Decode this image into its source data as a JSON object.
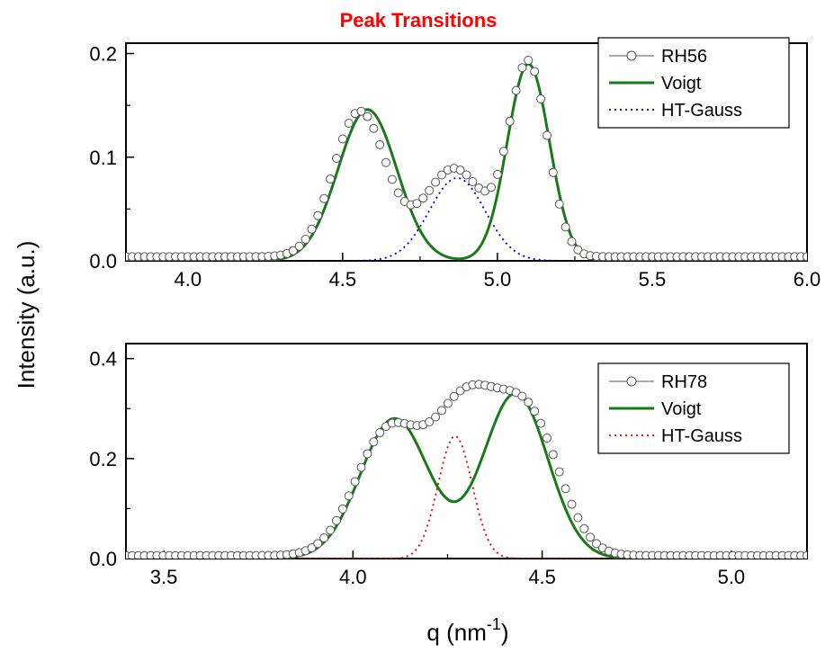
{
  "title": "Peak Transitions",
  "title_color": "#ff0000",
  "ylabel": "Intensity (a.u.)",
  "xlabel_base": "q (nm",
  "xlabel_sup": "-1",
  "xlabel_close": ")",
  "colors": {
    "data": "#555555",
    "voigt": "#1a7a1a",
    "gauss_top": "#0000cc",
    "gauss_bottom": "#e60000"
  },
  "chart_data": [
    {
      "type": "line",
      "panel": "top",
      "xlim": [
        3.8,
        6.0
      ],
      "ylim": [
        0,
        0.21
      ],
      "xticks": [
        4.0,
        4.5,
        5.0,
        5.5,
        6.0
      ],
      "xtick_labels": [
        "4.0",
        "4.5",
        "5.0",
        "5.5",
        "6.0"
      ],
      "yticks": [
        0.0,
        0.1,
        0.2
      ],
      "ytick_labels": [
        "0.0",
        "0.1",
        "0.2"
      ],
      "legend_position": "top-right",
      "series": [
        {
          "name": "RH56",
          "style": "open-circles",
          "model": {
            "baseline": 0.004,
            "peaks": [
              {
                "c": 4.555,
                "a": 0.14,
                "s": 0.085
              },
              {
                "c": 4.86,
                "a": 0.085,
                "s": 0.095
              },
              {
                "c": 5.1,
                "a": 0.186,
                "s": 0.062
              }
            ]
          }
        },
        {
          "name": "Voigt",
          "style": "solid",
          "model": {
            "baseline": 0.0,
            "peaks": [
              {
                "c": 4.58,
                "a": 0.146,
                "s": 0.095
              },
              {
                "c": 5.1,
                "a": 0.19,
                "s": 0.068
              }
            ]
          }
        },
        {
          "name": "HT-Gauss",
          "style": "dotted",
          "model": {
            "baseline": 0.0,
            "peaks": [
              {
                "c": 4.87,
                "a": 0.08,
                "s": 0.09
              }
            ]
          }
        }
      ]
    },
    {
      "type": "line",
      "panel": "bottom",
      "xlim": [
        3.4,
        5.2
      ],
      "ylim": [
        0,
        0.43
      ],
      "xticks": [
        3.5,
        4.0,
        4.5,
        5.0
      ],
      "xtick_labels": [
        "3.5",
        "4.0",
        "4.5",
        "5.0"
      ],
      "yticks": [
        0.0,
        0.2,
        0.4
      ],
      "ytick_labels": [
        "0.0",
        "0.2",
        "0.4"
      ],
      "legend_position": "top-right",
      "series": [
        {
          "name": "RH78",
          "style": "open-circles",
          "model": {
            "baseline": 0.006,
            "peaks": [
              {
                "c": 4.09,
                "a": 0.24,
                "s": 0.085
              },
              {
                "c": 4.3,
                "a": 0.3,
                "s": 0.09
              },
              {
                "c": 4.47,
                "a": 0.25,
                "s": 0.08
              }
            ]
          }
        },
        {
          "name": "Voigt",
          "style": "solid",
          "model": {
            "baseline": 0.0,
            "peaks": [
              {
                "c": 4.11,
                "a": 0.28,
                "s": 0.09
              },
              {
                "c": 4.43,
                "a": 0.33,
                "s": 0.085
              }
            ]
          }
        },
        {
          "name": "HT-Gauss",
          "style": "dotted",
          "model": {
            "baseline": 0.0,
            "peaks": [
              {
                "c": 4.27,
                "a": 0.245,
                "s": 0.045
              }
            ]
          }
        }
      ]
    }
  ]
}
